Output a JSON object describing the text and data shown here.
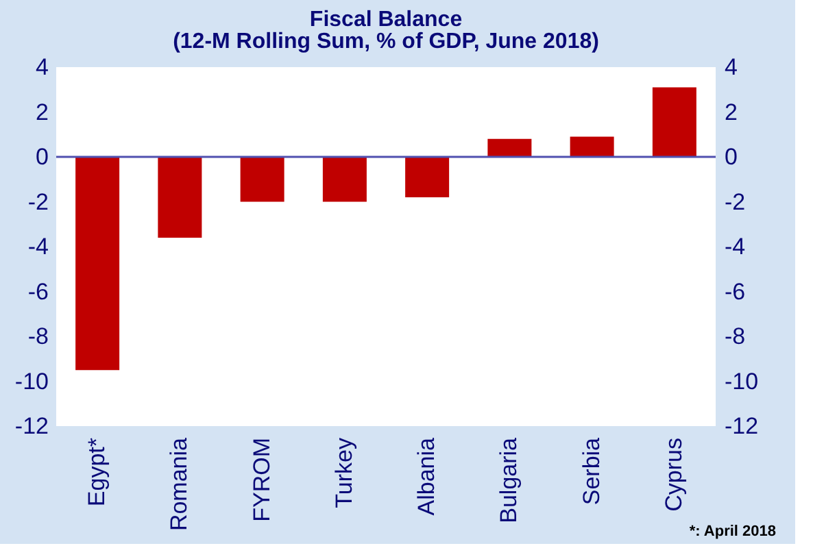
{
  "chart_data": {
    "type": "bar",
    "title": "Fiscal Balance",
    "subtitle": "(12-M Rolling Sum, % of GDP, June 2018)",
    "categories": [
      "Egypt*",
      "Romania",
      "FYROM",
      "Turkey",
      "Albania",
      "Bulgaria",
      "Serbia",
      "Cyprus"
    ],
    "values": [
      -9.5,
      -3.6,
      -2.0,
      -2.0,
      -1.8,
      0.8,
      0.9,
      3.1
    ],
    "color": "#c00000",
    "ylim": [
      -12,
      4
    ],
    "yticks": [
      -12,
      -10,
      -8,
      -6,
      -4,
      -2,
      0,
      2,
      4
    ],
    "y2lim": [
      -12,
      4
    ],
    "y2ticks": [
      -12,
      -10,
      -8,
      -6,
      -4,
      -2,
      0,
      2,
      4
    ],
    "ref_lines": [
      {
        "axis": "y",
        "value": 0,
        "color": "#5050b0"
      }
    ],
    "annotations": [
      "*: April 2018"
    ],
    "grid": false
  }
}
